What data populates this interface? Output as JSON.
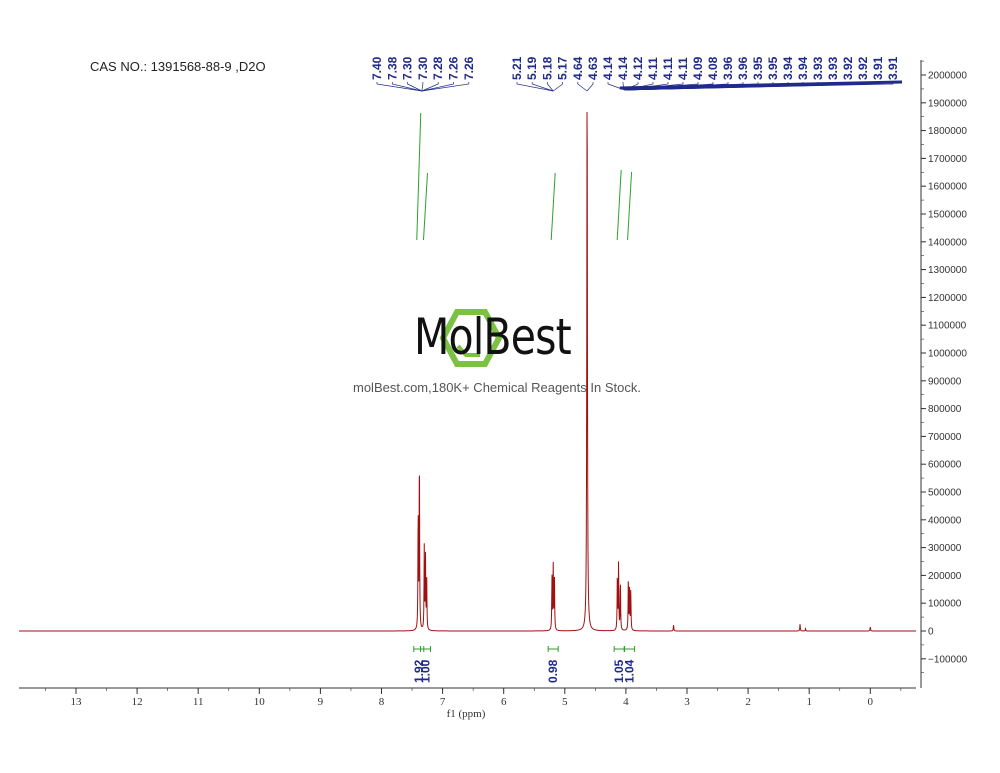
{
  "header": {
    "cas_text": "CAS NO.: 1391568-88-9 ,D2O"
  },
  "watermark": {
    "brand": "MolBest",
    "tagline": "molBest.com,180K+ Chemical Reagents In Stock.",
    "logo_color": "#7cc242"
  },
  "colors": {
    "spectrum": "#a01010",
    "peak_labels": "#1f2a8a",
    "integration": "#2e9e2e",
    "axis": "#333333"
  },
  "chart_data": {
    "type": "line",
    "title": "",
    "xlabel": "f1 (ppm)",
    "ylabel": "",
    "xlim": [
      14.0,
      -0.7
    ],
    "ylim": [
      -200000,
      2050000
    ],
    "x_ticks": [
      "13",
      "12",
      "11",
      "10",
      "9",
      "8",
      "7",
      "6",
      "5",
      "4",
      "3",
      "2",
      "1",
      "0"
    ],
    "y_ticks": [
      "2000000",
      "1900000",
      "1800000",
      "1700000",
      "1600000",
      "1500000",
      "1400000",
      "1300000",
      "1200000",
      "1100000",
      "1000000",
      "900000",
      "800000",
      "700000",
      "600000",
      "500000",
      "400000",
      "300000",
      "200000",
      "100000",
      "0",
      "-100000"
    ],
    "peak_labels_group1": [
      "7.40",
      "7.38",
      "7.30",
      "7.30",
      "7.28",
      "7.26",
      "7.26"
    ],
    "peak_labels_group2": [
      "5.21",
      "5.19",
      "5.18",
      "5.17",
      "4.64",
      "4.63"
    ],
    "peak_labels_group3": [
      "4.14",
      "4.14",
      "4.12",
      "4.11",
      "4.11",
      "4.11",
      "4.09",
      "4.08",
      "3.96",
      "3.96",
      "3.95",
      "3.95",
      "3.94",
      "3.94",
      "3.93",
      "3.93",
      "3.92",
      "3.92",
      "3.91",
      "3.91"
    ],
    "integrations": [
      {
        "ppm": 7.39,
        "value": "1.92"
      },
      {
        "ppm": 7.28,
        "value": "1.00"
      },
      {
        "ppm": 5.19,
        "value": "0.98"
      },
      {
        "ppm": 4.11,
        "value": "1.05"
      },
      {
        "ppm": 3.94,
        "value": "1.04"
      }
    ],
    "peaks": [
      {
        "ppm": 7.4,
        "height": 420000
      },
      {
        "ppm": 7.38,
        "height": 640000
      },
      {
        "ppm": 7.3,
        "height": 300000
      },
      {
        "ppm": 7.28,
        "height": 260000
      },
      {
        "ppm": 7.26,
        "height": 180000
      },
      {
        "ppm": 5.21,
        "height": 190000
      },
      {
        "ppm": 5.19,
        "height": 240000
      },
      {
        "ppm": 5.17,
        "height": 200000
      },
      {
        "ppm": 4.635,
        "height": 2010000
      },
      {
        "ppm": 4.14,
        "height": 200000
      },
      {
        "ppm": 4.12,
        "height": 250000
      },
      {
        "ppm": 4.09,
        "height": 180000
      },
      {
        "ppm": 3.96,
        "height": 190000
      },
      {
        "ppm": 3.94,
        "height": 150000
      },
      {
        "ppm": 3.92,
        "height": 140000
      },
      {
        "ppm": 3.22,
        "height": 22000
      },
      {
        "ppm": 1.15,
        "height": 25000
      },
      {
        "ppm": 1.06,
        "height": 8000
      },
      {
        "ppm": 0.0,
        "height": 15000
      }
    ]
  }
}
